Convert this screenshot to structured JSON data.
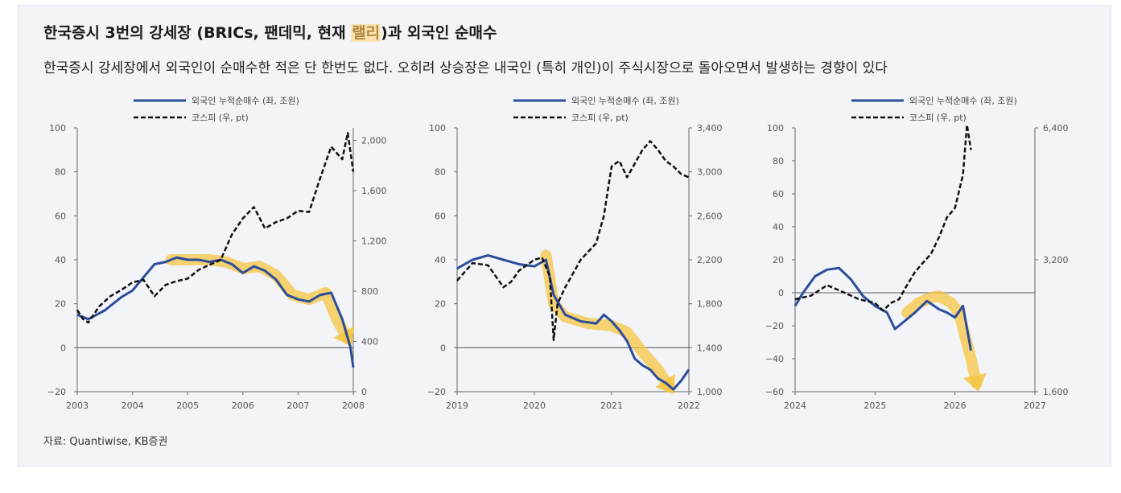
{
  "header": {
    "title_pre": "한국증시 3번의 강세장 (BRICs, 팬데믹, 현재 ",
    "title_hl": "랠리",
    "title_post": ")과 외국인 순매수",
    "subtitle": "한국증시 강세장에서 외국인이 순매수한 적은 단 한번도 없다. 오히려 상승장은 내국인 (특히 개인)이 주식시장으로 돌아오면서 발생하는 경향이 있다"
  },
  "source": "자료: Quantiwise, KB증권",
  "colors": {
    "foreign": "#2c4c9c",
    "kospi": "#111111",
    "highlight": "#f5c542",
    "axis": "#666666",
    "zero": "#555555"
  },
  "chart_data": [
    {
      "type": "line",
      "legend": [
        "외국인 누적순매수 (좌, 조원)",
        "코스피 (우, pt)"
      ],
      "x_ticks": [
        "2003",
        "2004",
        "2005",
        "2006",
        "2007",
        "2008"
      ],
      "xlim": [
        2003,
        2008
      ],
      "ylim_left": [
        -20,
        100
      ],
      "y_ticks_left": [
        "100",
        "80",
        "60",
        "40",
        "20",
        "0",
        "−20"
      ],
      "ylim_right": [
        0,
        2100
      ],
      "y_ticks_right": [
        "2,000",
        "1,600",
        "1,200",
        "800",
        "400",
        "0"
      ],
      "series": [
        {
          "name": "외국인 누적순매수 (좌, 조원)",
          "axis": "left",
          "style": "solid",
          "x": [
            2003.0,
            2003.2,
            2003.5,
            2003.8,
            2004.0,
            2004.2,
            2004.4,
            2004.6,
            2004.8,
            2005.0,
            2005.2,
            2005.4,
            2005.6,
            2005.8,
            2006.0,
            2006.2,
            2006.4,
            2006.6,
            2006.8,
            2007.0,
            2007.2,
            2007.4,
            2007.6,
            2007.8,
            2007.95,
            2008.0
          ],
          "y": [
            15,
            13,
            17,
            23,
            26,
            32,
            38,
            39,
            41,
            40,
            40,
            39,
            40,
            38,
            34,
            37,
            35,
            31,
            24,
            22,
            21,
            24,
            25,
            13,
            0,
            -9
          ]
        },
        {
          "name": "코스피 (우, pt)",
          "axis": "right",
          "style": "dash",
          "x": [
            2003.0,
            2003.1,
            2003.2,
            2003.4,
            2003.6,
            2003.8,
            2004.0,
            2004.2,
            2004.4,
            2004.6,
            2004.8,
            2005.0,
            2005.2,
            2005.4,
            2005.6,
            2005.8,
            2006.0,
            2006.2,
            2006.4,
            2006.6,
            2006.8,
            2007.0,
            2007.2,
            2007.4,
            2007.6,
            2007.8,
            2007.9,
            2008.0
          ],
          "y": [
            650,
            580,
            550,
            680,
            760,
            810,
            870,
            890,
            760,
            850,
            880,
            900,
            970,
            1010,
            1050,
            1250,
            1380,
            1470,
            1300,
            1350,
            1380,
            1440,
            1430,
            1700,
            1950,
            1850,
            2060,
            1750
          ]
        }
      ],
      "annotation_trend": {
        "axis": "left",
        "x": [
          2004.7,
          2005.0,
          2005.4,
          2005.7,
          2006.0,
          2006.3,
          2006.6,
          2006.9,
          2007.2,
          2007.5,
          2007.7,
          2007.9
        ],
        "y": [
          40,
          40,
          40,
          39,
          36,
          37,
          33,
          24,
          22,
          25,
          13,
          4
        ]
      }
    },
    {
      "type": "line",
      "legend": [
        "외국인 누적순매수 (좌, 조원)",
        "코스피 (우, pt)"
      ],
      "x_ticks": [
        "2019",
        "2020",
        "2021",
        "2022"
      ],
      "xlim": [
        2019,
        2022
      ],
      "ylim_left": [
        -20,
        100
      ],
      "y_ticks_left": [
        "100",
        "80",
        "60",
        "40",
        "20",
        "0",
        "−20"
      ],
      "ylim_right": [
        1000,
        3400
      ],
      "y_ticks_right": [
        "3,400",
        "3,000",
        "2,600",
        "2,200",
        "1,800",
        "1,400",
        "1,000"
      ],
      "series": [
        {
          "name": "외국인 누적순매수 (좌, 조원)",
          "axis": "left",
          "style": "solid",
          "x": [
            2019.0,
            2019.2,
            2019.4,
            2019.6,
            2019.8,
            2020.0,
            2020.15,
            2020.25,
            2020.4,
            2020.6,
            2020.8,
            2020.9,
            2021.0,
            2021.1,
            2021.2,
            2021.3,
            2021.4,
            2021.5,
            2021.6,
            2021.7,
            2021.8,
            2021.9,
            2022.0
          ],
          "y": [
            36,
            40,
            42,
            40,
            38,
            37,
            40,
            24,
            15,
            12,
            11,
            15,
            12,
            8,
            3,
            -5,
            -8,
            -10,
            -14,
            -16,
            -19,
            -15,
            -10
          ]
        },
        {
          "name": "코스피 (우, pt)",
          "axis": "right",
          "style": "dash",
          "x": [
            2019.0,
            2019.2,
            2019.4,
            2019.6,
            2019.7,
            2019.8,
            2020.0,
            2020.1,
            2020.2,
            2020.25,
            2020.3,
            2020.4,
            2020.6,
            2020.8,
            2020.9,
            2021.0,
            2021.1,
            2021.2,
            2021.4,
            2021.5,
            2021.6,
            2021.7,
            2021.8,
            2021.9,
            2022.0
          ],
          "y": [
            2010,
            2170,
            2150,
            1950,
            2000,
            2100,
            2200,
            2220,
            2050,
            1470,
            1800,
            1950,
            2200,
            2350,
            2600,
            3050,
            3100,
            2950,
            3200,
            3280,
            3200,
            3100,
            3050,
            2980,
            2950
          ]
        }
      ],
      "annotation_trend": {
        "axis": "left",
        "x": [
          2020.15,
          2020.25,
          2020.4,
          2020.7,
          2021.0,
          2021.2,
          2021.4,
          2021.6,
          2021.75
        ],
        "y": [
          42,
          20,
          14,
          11,
          10,
          7,
          -2,
          -10,
          -18
        ]
      }
    },
    {
      "type": "line",
      "legend": [
        "외국인 누적순매수 (좌, 조원)",
        "코스피 (우, pt)"
      ],
      "x_ticks": [
        "2024",
        "2025",
        "2026",
        "2027"
      ],
      "xlim": [
        2024,
        2027
      ],
      "ylim_left": [
        -60,
        100
      ],
      "y_ticks_left": [
        "100",
        "80",
        "60",
        "40",
        "20",
        "0",
        "−20",
        "−40",
        "−60"
      ],
      "ylim_right": [
        1600,
        6400
      ],
      "y_ticks_right": [
        "6,400",
        "3,200",
        "1,600"
      ],
      "y_scale_right": "log",
      "series": [
        {
          "name": "외국인 누적순매수 (좌, 조원)",
          "axis": "left",
          "style": "solid",
          "x": [
            2024.0,
            2024.1,
            2024.25,
            2024.4,
            2024.55,
            2024.7,
            2024.85,
            2025.0,
            2025.15,
            2025.25,
            2025.35,
            2025.5,
            2025.65,
            2025.8,
            2025.9,
            2026.0,
            2026.1,
            2026.2
          ],
          "y": [
            -8,
            0,
            10,
            14,
            15,
            8,
            -2,
            -8,
            -12,
            -22,
            -18,
            -12,
            -5,
            -10,
            -12,
            -15,
            -8,
            -35
          ]
        },
        {
          "name": "코스피 (우, pt)",
          "axis": "right",
          "style": "dash",
          "x": [
            2024.0,
            2024.2,
            2024.4,
            2024.6,
            2024.8,
            2025.0,
            2025.1,
            2025.2,
            2025.3,
            2025.4,
            2025.5,
            2025.6,
            2025.7,
            2025.8,
            2025.9,
            2026.0,
            2026.1,
            2026.15,
            2026.2
          ],
          "y": [
            2600,
            2650,
            2800,
            2700,
            2600,
            2550,
            2450,
            2550,
            2600,
            2800,
            3000,
            3150,
            3300,
            3600,
            4000,
            4200,
            5000,
            6500,
            5700
          ]
        }
      ],
      "annotation_trend": {
        "axis": "left",
        "x": [
          2025.4,
          2025.55,
          2025.7,
          2025.8,
          2025.95,
          2026.05,
          2026.12,
          2026.2,
          2026.27
        ],
        "y": [
          -12,
          -6,
          -3,
          -2,
          -6,
          -12,
          -25,
          -40,
          -55
        ]
      }
    }
  ]
}
